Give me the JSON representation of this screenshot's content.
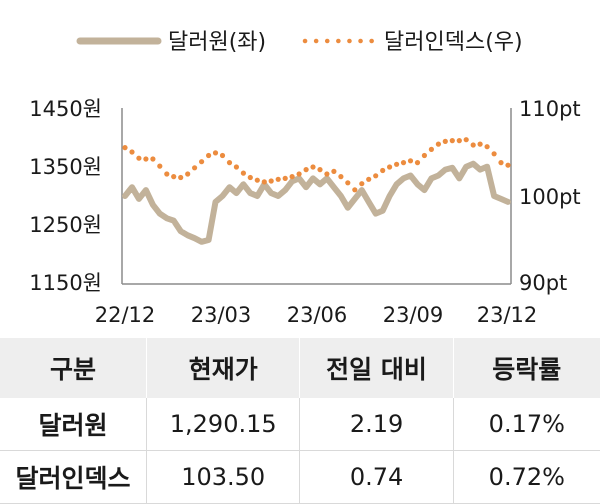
{
  "chart_data": {
    "type": "line",
    "legend": {
      "placement": "top",
      "items": [
        {
          "label": "달러원(좌)",
          "style": "solid",
          "color": "#c2b29a"
        },
        {
          "label": "달러인덱스(우)",
          "style": "dotted",
          "color": "#ec8c3f"
        }
      ]
    },
    "x_ticks": [
      "22/12",
      "23/03",
      "23/06",
      "23/09",
      "23/12"
    ],
    "y_left": {
      "ticks": [
        "1450원",
        "1350원",
        "1250원",
        "1150원"
      ],
      "range": [
        1150,
        1450
      ]
    },
    "y_right": {
      "ticks": [
        "110pt",
        "100pt",
        "90pt"
      ],
      "range": [
        90,
        110
      ]
    },
    "series": [
      {
        "name": "달러원(좌)",
        "axis": "left",
        "color": "#c2b29a",
        "x": [
          "2022-12-01",
          "2022-12-08",
          "2022-12-15",
          "2022-12-22",
          "2022-12-29",
          "2023-01-05",
          "2023-01-12",
          "2023-01-19",
          "2023-01-26",
          "2023-02-02",
          "2023-02-09",
          "2023-02-16",
          "2023-02-23",
          "2023-03-02",
          "2023-03-09",
          "2023-03-16",
          "2023-03-23",
          "2023-03-30",
          "2023-04-06",
          "2023-04-13",
          "2023-04-20",
          "2023-04-27",
          "2023-05-04",
          "2023-05-11",
          "2023-05-18",
          "2023-05-25",
          "2023-06-01",
          "2023-06-08",
          "2023-06-15",
          "2023-06-22",
          "2023-06-29",
          "2023-07-06",
          "2023-07-13",
          "2023-07-20",
          "2023-07-27",
          "2023-08-03",
          "2023-08-10",
          "2023-08-17",
          "2023-08-24",
          "2023-08-31",
          "2023-09-07",
          "2023-09-14",
          "2023-09-21",
          "2023-09-28",
          "2023-10-05",
          "2023-10-12",
          "2023-10-19",
          "2023-10-26",
          "2023-11-02",
          "2023-11-09",
          "2023-11-16",
          "2023-11-23",
          "2023-11-30",
          "2023-12-07",
          "2023-12-14",
          "2023-12-21"
        ],
        "values": [
          1300,
          1315,
          1295,
          1310,
          1285,
          1270,
          1262,
          1258,
          1240,
          1233,
          1228,
          1222,
          1225,
          1290,
          1300,
          1315,
          1305,
          1320,
          1305,
          1300,
          1320,
          1305,
          1300,
          1310,
          1325,
          1330,
          1315,
          1330,
          1320,
          1330,
          1315,
          1300,
          1280,
          1295,
          1310,
          1290,
          1270,
          1275,
          1300,
          1320,
          1330,
          1335,
          1320,
          1310,
          1330,
          1335,
          1345,
          1348,
          1330,
          1350,
          1355,
          1345,
          1350,
          1300,
          1295,
          1290
        ]
      },
      {
        "name": "달러인덱스(우)",
        "axis": "right",
        "color": "#ec8c3f",
        "x": [
          "2022-12-01",
          "2022-12-08",
          "2022-12-15",
          "2022-12-22",
          "2022-12-29",
          "2023-01-05",
          "2023-01-12",
          "2023-01-19",
          "2023-01-26",
          "2023-02-02",
          "2023-02-09",
          "2023-02-16",
          "2023-02-23",
          "2023-03-02",
          "2023-03-09",
          "2023-03-16",
          "2023-03-23",
          "2023-03-30",
          "2023-04-06",
          "2023-04-13",
          "2023-04-20",
          "2023-04-27",
          "2023-05-04",
          "2023-05-11",
          "2023-05-18",
          "2023-05-25",
          "2023-06-01",
          "2023-06-08",
          "2023-06-15",
          "2023-06-22",
          "2023-06-29",
          "2023-07-06",
          "2023-07-13",
          "2023-07-20",
          "2023-07-27",
          "2023-08-03",
          "2023-08-10",
          "2023-08-17",
          "2023-08-24",
          "2023-08-31",
          "2023-09-07",
          "2023-09-14",
          "2023-09-21",
          "2023-09-28",
          "2023-10-05",
          "2023-10-12",
          "2023-10-19",
          "2023-10-26",
          "2023-11-02",
          "2023-11-09",
          "2023-11-16",
          "2023-11-23",
          "2023-11-30",
          "2023-12-07",
          "2023-12-14",
          "2023-12-21"
        ],
        "values": [
          105.5,
          105.0,
          104.3,
          104.2,
          104.2,
          103.4,
          102.5,
          102.2,
          102.1,
          102.5,
          103.2,
          103.9,
          104.6,
          104.9,
          104.6,
          103.8,
          103.3,
          102.6,
          102.1,
          101.8,
          101.6,
          101.7,
          101.9,
          102.0,
          102.2,
          102.5,
          103.0,
          103.3,
          103.0,
          102.5,
          102.8,
          102.2,
          101.5,
          100.7,
          101.4,
          101.9,
          102.3,
          102.9,
          103.3,
          103.6,
          103.8,
          104.0,
          103.8,
          104.6,
          105.3,
          105.9,
          106.2,
          106.3,
          106.3,
          106.4,
          105.8,
          105.9,
          105.6,
          104.8,
          103.8,
          103.5
        ]
      }
    ],
    "grid": false
  },
  "table": {
    "headers": [
      "구분",
      "현재가",
      "전일 대비",
      "등락률"
    ],
    "rows": [
      {
        "name": "달러원",
        "price": "1,290.15",
        "change": "2.19",
        "rate": "0.17%"
      },
      {
        "name": "달러인덱스",
        "price": "103.50",
        "change": "0.74",
        "rate": "0.72%"
      }
    ]
  }
}
